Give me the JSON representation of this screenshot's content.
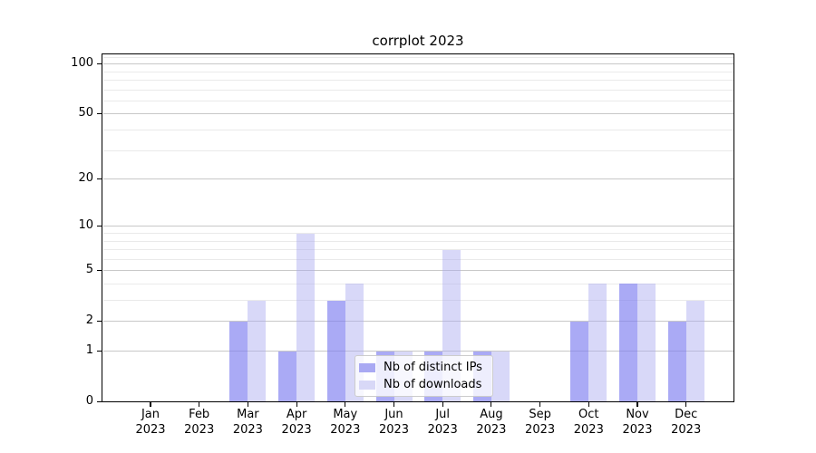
{
  "chart_data": {
    "type": "bar",
    "title": "corrplot 2023",
    "categories": [
      "Jan 2023",
      "Feb 2023",
      "Mar 2023",
      "Apr 2023",
      "May 2023",
      "Jun 2023",
      "Jul 2023",
      "Aug 2023",
      "Sep 2023",
      "Oct 2023",
      "Nov 2023",
      "Dec 2023"
    ],
    "series": [
      {
        "name": "Nb of distinct IPs",
        "values": [
          0,
          0,
          2,
          1,
          3,
          1,
          1,
          1,
          0,
          2,
          4,
          2
        ],
        "fill": "rgba(124,124,240,0.65)",
        "legend_swatch": "#a9a9f3"
      },
      {
        "name": "Nb of downloads",
        "values": [
          0,
          0,
          3,
          9,
          4,
          1,
          7,
          1,
          0,
          4,
          4,
          3
        ],
        "fill": "rgba(168,168,239,0.45)",
        "legend_swatch": "#d8d8f7"
      }
    ],
    "xlabel": "",
    "ylabel": "",
    "yscale": "log10(value+1)",
    "ylim": [
      0,
      118
    ],
    "y_major_ticks": [
      0,
      1,
      2,
      5,
      10,
      20,
      50,
      100
    ],
    "y_tick_labels": [
      "0",
      "1",
      "2",
      "5",
      "10",
      "20",
      "50",
      "100"
    ],
    "y_minor_gridlines": [
      3,
      4,
      6,
      7,
      8,
      9,
      30,
      40,
      60,
      70,
      80,
      90,
      110
    ],
    "grid": true,
    "legend_position": "lower center"
  },
  "colors": {
    "spine": "#000000",
    "grid_major": "#c8c8c8",
    "grid_minor": "#eaeaea",
    "text": "#000000",
    "legend_border": "#cccccc",
    "legend_bg": "rgba(255,255,255,0.8)"
  }
}
